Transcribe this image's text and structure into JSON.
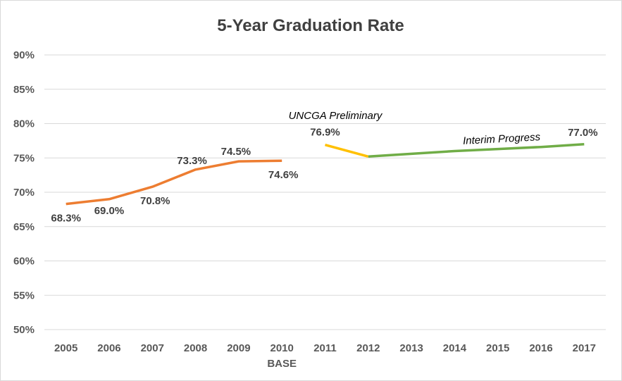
{
  "chart_data": {
    "type": "line",
    "title": "5-Year Graduation Rate",
    "xlabel": "",
    "ylabel": "",
    "ylim": [
      50,
      90
    ],
    "y_ticks": [
      "50%",
      "55%",
      "60%",
      "65%",
      "70%",
      "75%",
      "80%",
      "85%",
      "90%"
    ],
    "grid": "horizontal",
    "categories": [
      "2005",
      "2006",
      "2007",
      "2008",
      "2009",
      "2010",
      "2011",
      "2012",
      "2013",
      "2014",
      "2015",
      "2016",
      "2017"
    ],
    "base_label": "BASE",
    "series": [
      {
        "color": "#ED7D31",
        "x": [
          "2005",
          "2006",
          "2007",
          "2008",
          "2009",
          "2010"
        ],
        "values": [
          68.3,
          69.0,
          70.8,
          73.3,
          74.5,
          74.6
        ],
        "labels": [
          "68.3%",
          "69.0%",
          "70.8%",
          "73.3%",
          "74.5%",
          "74.6%"
        ]
      },
      {
        "color": "#FFC000",
        "x": [
          "2011",
          "2012"
        ],
        "values": [
          76.9,
          75.2
        ],
        "labels": [
          "76.9%",
          ""
        ]
      },
      {
        "color": "#70AD47",
        "x": [
          "2012",
          "2013",
          "2014",
          "2015",
          "2016",
          "2017"
        ],
        "values": [
          75.2,
          75.6,
          76.0,
          76.3,
          76.6,
          77.0
        ],
        "labels": [
          "",
          "",
          "",
          "",
          "",
          "77.0%"
        ]
      }
    ],
    "annotations": {
      "preliminary": "UNCGA Preliminary",
      "interim": "Interim Progress"
    }
  }
}
